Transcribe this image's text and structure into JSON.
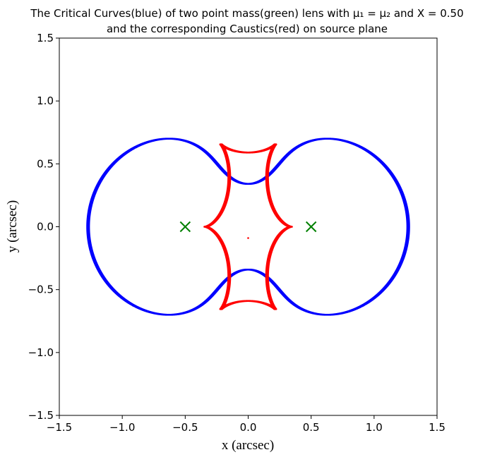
{
  "chart_data": {
    "type": "scatter",
    "title_line1": "The Critical Curves(blue) of two point mass(green) lens with μ₁ = μ₂ and X = 0.50",
    "title_line2": "and the corresponding Caustics(red) on source plane",
    "xlabel": "x (arcsec)",
    "ylabel": "y (arcsec)",
    "xlim": [
      -1.5,
      1.5
    ],
    "ylim": [
      -1.5,
      1.5
    ],
    "xticks": [
      -1.5,
      -1.0,
      -0.5,
      0.0,
      0.5,
      1.0,
      1.5
    ],
    "yticks": [
      -1.5,
      -1.0,
      -0.5,
      0.0,
      0.5,
      1.0,
      1.5
    ],
    "xtick_labels": [
      "−1.5",
      "−1.0",
      "−0.5",
      "0.0",
      "0.5",
      "1.0",
      "1.5"
    ],
    "ytick_labels": [
      "−1.5",
      "−1.0",
      "−0.5",
      "0.0",
      "0.5",
      "1.0",
      "1.5"
    ],
    "lens_model": {
      "mass_ratio": "equal",
      "half_separation_X": 0.5
    },
    "series": [
      {
        "name": "Critical Curves",
        "color": "#0000ff",
        "marker": "dot"
      },
      {
        "name": "Caustics",
        "color": "#ff0000",
        "marker": "dot"
      },
      {
        "name": "Point masses",
        "color": "#008000",
        "marker": "x",
        "points": [
          [
            -0.5,
            0.0
          ],
          [
            0.5,
            0.0
          ]
        ]
      }
    ],
    "extra_points": [
      {
        "name": "stray caustic dot",
        "color": "#ff0000",
        "x": 0.0,
        "y": -0.09
      }
    ]
  }
}
